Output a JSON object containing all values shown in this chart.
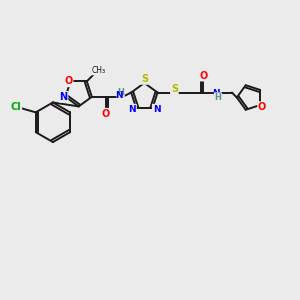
{
  "bg_color": "#ebebeb",
  "bond_color": "#1a1a1a",
  "colors": {
    "N": "#0000ff",
    "O": "#ff0000",
    "S": "#b8b800",
    "Cl": "#00aa00",
    "H": "#5a9090",
    "C": "#1a1a1a"
  }
}
